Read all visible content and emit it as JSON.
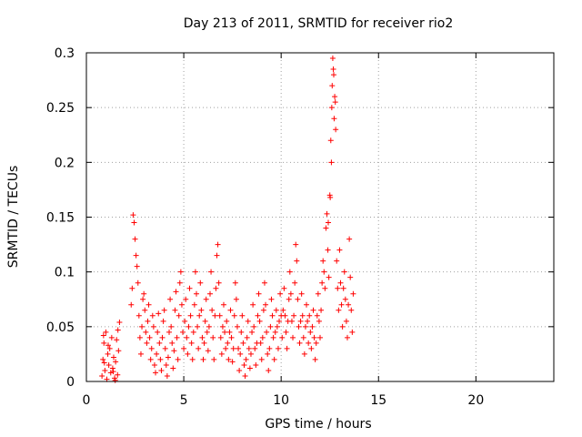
{
  "chart_data": {
    "type": "scatter",
    "title": "Day 213 of 2011, SRMTID for receiver rio2",
    "xlabel": "GPS time / hours",
    "ylabel": "SRMTID / TECUs",
    "xlim": [
      0,
      24
    ],
    "ylim": [
      0,
      0.3
    ],
    "x_ticks": [
      0,
      5,
      10,
      15,
      20
    ],
    "y_ticks": [
      0,
      0.05,
      0.1,
      0.15,
      0.2,
      0.25,
      0.3
    ],
    "x_tick_labels": [
      "0",
      "5",
      "10",
      "15",
      "20"
    ],
    "y_tick_labels": [
      "0",
      "0.05",
      "0.1",
      "0.15",
      "0.2",
      "0.25",
      "0.3"
    ],
    "grid": true,
    "marker": "plus",
    "series": [
      {
        "color": "#ff0000",
        "points": [
          [
            0.8,
            0.005
          ],
          [
            0.85,
            0.02
          ],
          [
            0.9,
            0.035
          ],
          [
            0.95,
            0.01
          ],
          [
            1.0,
            0.045
          ],
          [
            1.05,
            0.002
          ],
          [
            1.1,
            0.025
          ],
          [
            1.15,
            0.015
          ],
          [
            1.2,
            0.03
          ],
          [
            1.25,
            0.008
          ],
          [
            1.3,
            0.04
          ],
          [
            1.35,
            0.012
          ],
          [
            1.4,
            0.022
          ],
          [
            1.45,
            0.003
          ],
          [
            1.5,
            0.018
          ],
          [
            1.55,
            0.038
          ],
          [
            1.6,
            0.006
          ],
          [
            1.65,
            0.028
          ],
          [
            1.7,
            0.054
          ],
          [
            0.88,
            0.042
          ],
          [
            1.12,
            0.033
          ],
          [
            1.38,
            0.009
          ],
          [
            1.62,
            0.047
          ],
          [
            0.92,
            0.017
          ],
          [
            1.48,
            0.001
          ],
          [
            2.3,
            0.07
          ],
          [
            2.35,
            0.085
          ],
          [
            2.4,
            0.152
          ],
          [
            2.45,
            0.145
          ],
          [
            2.5,
            0.13
          ],
          [
            2.55,
            0.115
          ],
          [
            2.6,
            0.105
          ],
          [
            2.65,
            0.09
          ],
          [
            2.7,
            0.06
          ],
          [
            2.75,
            0.04
          ],
          [
            2.8,
            0.025
          ],
          [
            2.85,
            0.05
          ],
          [
            2.9,
            0.075
          ],
          [
            2.95,
            0.08
          ],
          [
            3.0,
            0.065
          ],
          [
            3.05,
            0.045
          ],
          [
            3.1,
            0.035
          ],
          [
            3.15,
            0.055
          ],
          [
            3.2,
            0.07
          ],
          [
            3.25,
            0.04
          ],
          [
            3.3,
            0.02
          ],
          [
            3.35,
            0.03
          ],
          [
            3.4,
            0.06
          ],
          [
            3.45,
            0.05
          ],
          [
            3.5,
            0.015
          ],
          [
            3.55,
            0.008
          ],
          [
            3.6,
            0.025
          ],
          [
            3.65,
            0.045
          ],
          [
            3.7,
            0.062
          ],
          [
            3.75,
            0.035
          ],
          [
            3.8,
            0.02
          ],
          [
            3.85,
            0.01
          ],
          [
            3.9,
            0.04
          ],
          [
            3.95,
            0.055
          ],
          [
            4.0,
            0.065
          ],
          [
            4.05,
            0.03
          ],
          [
            4.1,
            0.015
          ],
          [
            4.15,
            0.005
          ],
          [
            4.2,
            0.022
          ],
          [
            4.25,
            0.045
          ],
          [
            4.3,
            0.075
          ],
          [
            4.35,
            0.05
          ],
          [
            4.4,
            0.035
          ],
          [
            4.45,
            0.012
          ],
          [
            4.5,
            0.028
          ],
          [
            4.55,
            0.065
          ],
          [
            4.6,
            0.082
          ],
          [
            4.65,
            0.04
          ],
          [
            4.7,
            0.02
          ],
          [
            4.75,
            0.06
          ],
          [
            4.8,
            0.09
          ],
          [
            4.85,
            0.1
          ],
          [
            4.9,
            0.07
          ],
          [
            4.95,
            0.045
          ],
          [
            5.0,
            0.03
          ],
          [
            5.05,
            0.055
          ],
          [
            5.1,
            0.075
          ],
          [
            5.15,
            0.04
          ],
          [
            5.2,
            0.025
          ],
          [
            5.25,
            0.05
          ],
          [
            5.3,
            0.085
          ],
          [
            5.35,
            0.06
          ],
          [
            5.4,
            0.035
          ],
          [
            5.45,
            0.02
          ],
          [
            5.5,
            0.045
          ],
          [
            5.55,
            0.07
          ],
          [
            5.6,
            0.1
          ],
          [
            5.65,
            0.08
          ],
          [
            5.7,
            0.05
          ],
          [
            5.75,
            0.03
          ],
          [
            5.8,
            0.06
          ],
          [
            5.85,
            0.09
          ],
          [
            5.9,
            0.065
          ],
          [
            5.95,
            0.04
          ],
          [
            6.0,
            0.02
          ],
          [
            6.05,
            0.035
          ],
          [
            6.1,
            0.055
          ],
          [
            6.15,
            0.075
          ],
          [
            6.2,
            0.045
          ],
          [
            6.25,
            0.028
          ],
          [
            6.3,
            0.05
          ],
          [
            6.35,
            0.08
          ],
          [
            6.4,
            0.1
          ],
          [
            6.45,
            0.065
          ],
          [
            6.5,
            0.04
          ],
          [
            6.55,
            0.02
          ],
          [
            6.6,
            0.06
          ],
          [
            6.65,
            0.085
          ],
          [
            6.7,
            0.115
          ],
          [
            6.75,
            0.125
          ],
          [
            6.8,
            0.09
          ],
          [
            6.85,
            0.06
          ],
          [
            6.9,
            0.04
          ],
          [
            6.95,
            0.025
          ],
          [
            7.0,
            0.05
          ],
          [
            7.05,
            0.07
          ],
          [
            7.1,
            0.045
          ],
          [
            7.15,
            0.03
          ],
          [
            7.2,
            0.055
          ],
          [
            7.25,
            0.035
          ],
          [
            7.3,
            0.02
          ],
          [
            7.35,
            0.045
          ],
          [
            7.4,
            0.065
          ],
          [
            7.45,
            0.04
          ],
          [
            7.5,
            0.018
          ],
          [
            7.55,
            0.03
          ],
          [
            7.6,
            0.06
          ],
          [
            7.65,
            0.09
          ],
          [
            7.7,
            0.075
          ],
          [
            7.75,
            0.05
          ],
          [
            7.8,
            0.03
          ],
          [
            7.85,
            0.01
          ],
          [
            7.9,
            0.025
          ],
          [
            7.95,
            0.045
          ],
          [
            8.0,
            0.06
          ],
          [
            8.05,
            0.035
          ],
          [
            8.1,
            0.015
          ],
          [
            8.15,
            0.005
          ],
          [
            8.2,
            0.02
          ],
          [
            8.25,
            0.04
          ],
          [
            8.3,
            0.055
          ],
          [
            8.35,
            0.03
          ],
          [
            8.4,
            0.012
          ],
          [
            8.45,
            0.025
          ],
          [
            8.5,
            0.045
          ],
          [
            8.55,
            0.07
          ],
          [
            8.6,
            0.05
          ],
          [
            8.65,
            0.03
          ],
          [
            8.7,
            0.015
          ],
          [
            8.75,
            0.035
          ],
          [
            8.8,
            0.06
          ],
          [
            8.85,
            0.08
          ],
          [
            8.9,
            0.055
          ],
          [
            8.95,
            0.035
          ],
          [
            9.0,
            0.02
          ],
          [
            9.05,
            0.04
          ],
          [
            9.1,
            0.065
          ],
          [
            9.15,
            0.09
          ],
          [
            9.2,
            0.07
          ],
          [
            9.25,
            0.045
          ],
          [
            9.3,
            0.025
          ],
          [
            9.35,
            0.01
          ],
          [
            9.4,
            0.03
          ],
          [
            9.45,
            0.05
          ],
          [
            9.5,
            0.075
          ],
          [
            9.55,
            0.06
          ],
          [
            9.6,
            0.04
          ],
          [
            9.65,
            0.02
          ],
          [
            9.7,
            0.045
          ],
          [
            9.75,
            0.065
          ],
          [
            9.8,
            0.05
          ],
          [
            9.85,
            0.03
          ],
          [
            9.9,
            0.055
          ],
          [
            9.95,
            0.08
          ],
          [
            10.0,
            0.06
          ],
          [
            10.05,
            0.04
          ],
          [
            10.1,
            0.065
          ],
          [
            10.15,
            0.085
          ],
          [
            10.2,
            0.06
          ],
          [
            10.25,
            0.045
          ],
          [
            10.3,
            0.03
          ],
          [
            10.35,
            0.055
          ],
          [
            10.4,
            0.075
          ],
          [
            10.45,
            0.1
          ],
          [
            10.5,
            0.08
          ],
          [
            10.55,
            0.055
          ],
          [
            10.6,
            0.04
          ],
          [
            10.65,
            0.06
          ],
          [
            10.7,
            0.09
          ],
          [
            10.75,
            0.125
          ],
          [
            10.8,
            0.11
          ],
          [
            10.85,
            0.075
          ],
          [
            10.9,
            0.05
          ],
          [
            10.95,
            0.035
          ],
          [
            11.0,
            0.055
          ],
          [
            11.05,
            0.08
          ],
          [
            11.1,
            0.06
          ],
          [
            11.15,
            0.04
          ],
          [
            11.2,
            0.025
          ],
          [
            11.25,
            0.05
          ],
          [
            11.3,
            0.07
          ],
          [
            11.35,
            0.055
          ],
          [
            11.4,
            0.035
          ],
          [
            11.45,
            0.06
          ],
          [
            11.5,
            0.045
          ],
          [
            11.55,
            0.03
          ],
          [
            11.6,
            0.05
          ],
          [
            11.65,
            0.065
          ],
          [
            11.7,
            0.04
          ],
          [
            11.75,
            0.02
          ],
          [
            11.8,
            0.035
          ],
          [
            11.85,
            0.06
          ],
          [
            11.9,
            0.08
          ],
          [
            11.95,
            0.055
          ],
          [
            12.0,
            0.04
          ],
          [
            12.05,
            0.065
          ],
          [
            12.1,
            0.09
          ],
          [
            12.15,
            0.11
          ],
          [
            12.2,
            0.1
          ],
          [
            12.25,
            0.085
          ],
          [
            12.3,
            0.14
          ],
          [
            12.35,
            0.153
          ],
          [
            12.4,
            0.12
          ],
          [
            12.45,
            0.095
          ],
          [
            12.5,
            0.17
          ],
          [
            12.55,
            0.22
          ],
          [
            12.6,
            0.25
          ],
          [
            12.65,
            0.295
          ],
          [
            12.7,
            0.28
          ],
          [
            12.75,
            0.26
          ],
          [
            12.8,
            0.23
          ],
          [
            12.85,
            0.11
          ],
          [
            12.9,
            0.085
          ],
          [
            12.95,
            0.065
          ],
          [
            13.0,
            0.12
          ],
          [
            13.05,
            0.09
          ],
          [
            13.1,
            0.07
          ],
          [
            13.15,
            0.05
          ],
          [
            13.2,
            0.085
          ],
          [
            13.25,
            0.1
          ],
          [
            13.3,
            0.075
          ],
          [
            13.35,
            0.055
          ],
          [
            13.4,
            0.04
          ],
          [
            13.45,
            0.07
          ],
          [
            13.5,
            0.13
          ],
          [
            13.55,
            0.095
          ],
          [
            13.6,
            0.065
          ],
          [
            13.65,
            0.045
          ],
          [
            13.7,
            0.08
          ],
          [
            12.62,
            0.27
          ],
          [
            12.72,
            0.24
          ],
          [
            12.58,
            0.2
          ],
          [
            12.68,
            0.285
          ],
          [
            12.78,
            0.255
          ],
          [
            12.52,
            0.168
          ],
          [
            12.42,
            0.145
          ]
        ]
      }
    ]
  }
}
